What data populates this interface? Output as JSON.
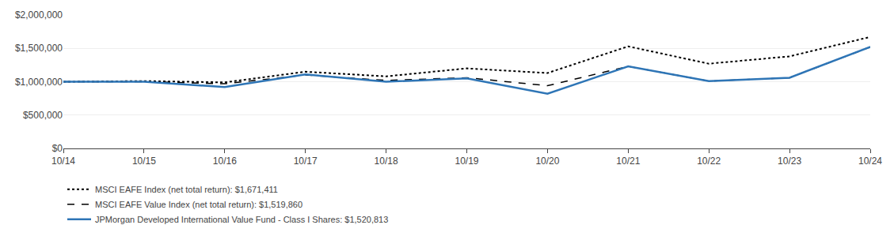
{
  "chart_data": {
    "type": "line",
    "categories": [
      "10/14",
      "10/15",
      "10/16",
      "10/17",
      "10/18",
      "10/19",
      "10/20",
      "10/21",
      "10/22",
      "10/23",
      "10/24"
    ],
    "series": [
      {
        "name": "MSCI EAFE Index (net total return): $1,671,411",
        "color": "#000000",
        "line_style": "dotted",
        "values": [
          1000000,
          1010000,
          990000,
          1150000,
          1080000,
          1200000,
          1130000,
          1530000,
          1270000,
          1380000,
          1671411
        ]
      },
      {
        "name": "MSCI EAFE Value Index (net total return): $1,519,860",
        "color": "#000000",
        "line_style": "dashed",
        "values": [
          1000000,
          1000000,
          970000,
          1100000,
          1020000,
          1060000,
          940000,
          1230000,
          1010000,
          1060000,
          1519860
        ]
      },
      {
        "name": "JPMorgan Developed International Value Fund - Class I Shares: $1,520,813",
        "color": "#2e75b6",
        "line_style": "solid",
        "values": [
          1000000,
          1000000,
          920000,
          1110000,
          1000000,
          1050000,
          820000,
          1230000,
          1010000,
          1060000,
          1520813
        ]
      }
    ],
    "ylim": [
      0,
      2000000
    ],
    "yticks": [
      {
        "value": 0,
        "label": "$0"
      },
      {
        "value": 500000,
        "label": "$500,000"
      },
      {
        "value": 1000000,
        "label": "$1,000,000"
      },
      {
        "value": 1500000,
        "label": "$1,500,000"
      },
      {
        "value": 2000000,
        "label": "$2,000,000"
      }
    ],
    "grid": true,
    "legend": "bottom left"
  }
}
